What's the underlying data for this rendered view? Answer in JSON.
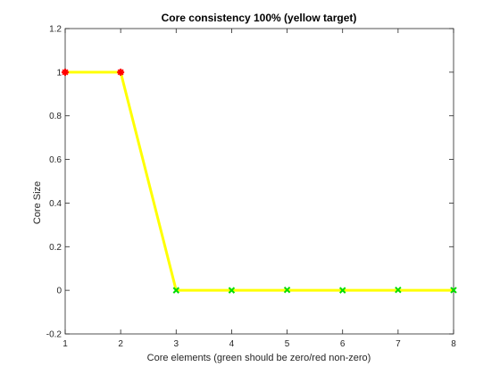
{
  "chart_data": {
    "type": "line",
    "title": "Core consistency 100% (yellow target)",
    "xlabel": "Core elements (green should be zero/red non-zero)",
    "ylabel": "Core Size",
    "xlim": [
      1,
      8
    ],
    "ylim": [
      -0.2,
      1.2
    ],
    "xticks": [
      "1",
      "2",
      "3",
      "4",
      "5",
      "6",
      "7",
      "8"
    ],
    "yticks": [
      "-0.2",
      "0",
      "0.2",
      "0.4",
      "0.6",
      "0.8",
      "1",
      "1.2"
    ],
    "grid": false,
    "box": true,
    "series": [
      {
        "role": "target",
        "color": "#ffff00",
        "style": "solid-line",
        "x": [
          1,
          2,
          3,
          4,
          5,
          6,
          7,
          8
        ],
        "y": [
          1,
          1,
          0,
          0,
          0,
          0,
          0,
          0
        ]
      },
      {
        "role": "core-elements-nonzero",
        "color": "#ff0000",
        "marker": "star",
        "x": [
          1,
          2
        ],
        "y": [
          1,
          1
        ]
      },
      {
        "role": "core-elements-zero",
        "color": "#00dd00",
        "marker": "x",
        "x": [
          3,
          4,
          5,
          6,
          7,
          8
        ],
        "y": [
          0,
          0,
          0.002,
          0,
          0.002,
          0.001
        ]
      }
    ]
  }
}
